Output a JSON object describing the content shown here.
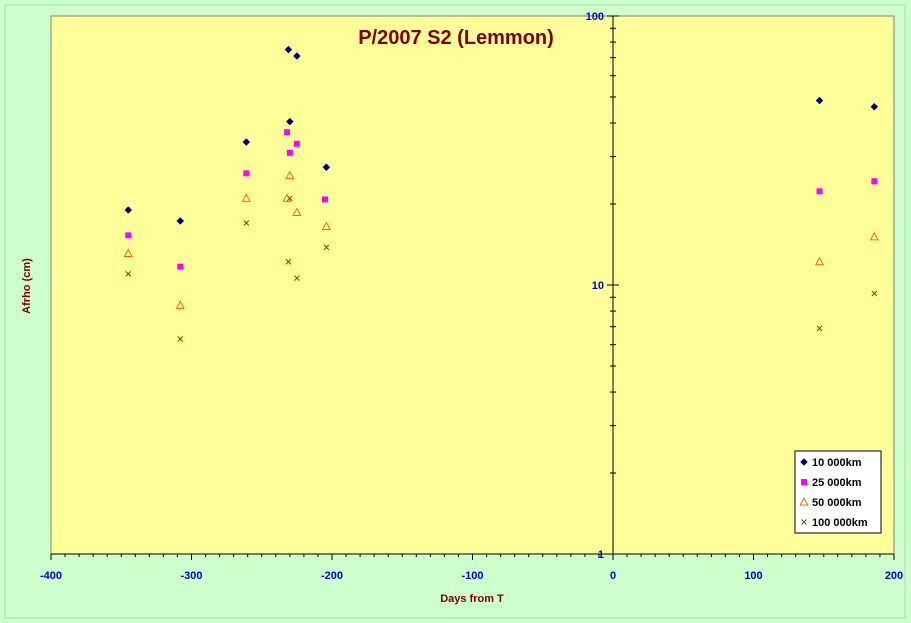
{
  "chart_data": {
    "type": "scatter",
    "title": "P/2007 S2 (Lemmon)",
    "xlabel": "Days from T",
    "ylabel": "Afrho (cm)",
    "xlim": [
      -400,
      200
    ],
    "ylim": [
      1,
      100
    ],
    "y_scale": "log",
    "x_ticks": [
      -400,
      -300,
      -200,
      -100,
      0,
      100,
      200
    ],
    "y_ticks": [
      1,
      10,
      100
    ],
    "y_axis_at_x": 0,
    "grid": false,
    "legend_position": "bottom-right",
    "series": [
      {
        "name": "10 000km",
        "marker": "diamond",
        "color": "#000080",
        "points": [
          [
            -345,
            19
          ],
          [
            -308,
            17.3
          ],
          [
            -261,
            34
          ],
          [
            -231,
            75
          ],
          [
            -225,
            71
          ],
          [
            -230,
            40.5
          ],
          [
            -204,
            27.4
          ],
          [
            147,
            48.5
          ],
          [
            186,
            46
          ]
        ]
      },
      {
        "name": "25 000km",
        "marker": "square",
        "color": "#ff00ff",
        "points": [
          [
            -345,
            15.3
          ],
          [
            -308,
            11.7
          ],
          [
            -261,
            26
          ],
          [
            -232,
            37
          ],
          [
            -230,
            31
          ],
          [
            -225,
            33.5
          ],
          [
            -205,
            20.8
          ],
          [
            147,
            22.3
          ],
          [
            186,
            24.3
          ]
        ]
      },
      {
        "name": "50 000km",
        "marker": "triangle",
        "color": "#ff6600",
        "points": [
          [
            -345,
            13.1
          ],
          [
            -308,
            8.4
          ],
          [
            -261,
            21
          ],
          [
            -232,
            21
          ],
          [
            -230,
            25.5
          ],
          [
            -225,
            18.6
          ],
          [
            -204,
            16.5
          ],
          [
            147,
            12.2
          ],
          [
            186,
            15.1
          ]
        ]
      },
      {
        "name": "100 000km",
        "marker": "cross",
        "color": "#993300",
        "points": [
          [
            -345,
            11
          ],
          [
            -308,
            6.3
          ],
          [
            -261,
            17
          ],
          [
            -230,
            21
          ],
          [
            -231,
            12.2
          ],
          [
            -225,
            10.6
          ],
          [
            -204,
            13.8
          ],
          [
            147,
            6.9
          ],
          [
            186,
            9.3
          ]
        ]
      }
    ]
  }
}
